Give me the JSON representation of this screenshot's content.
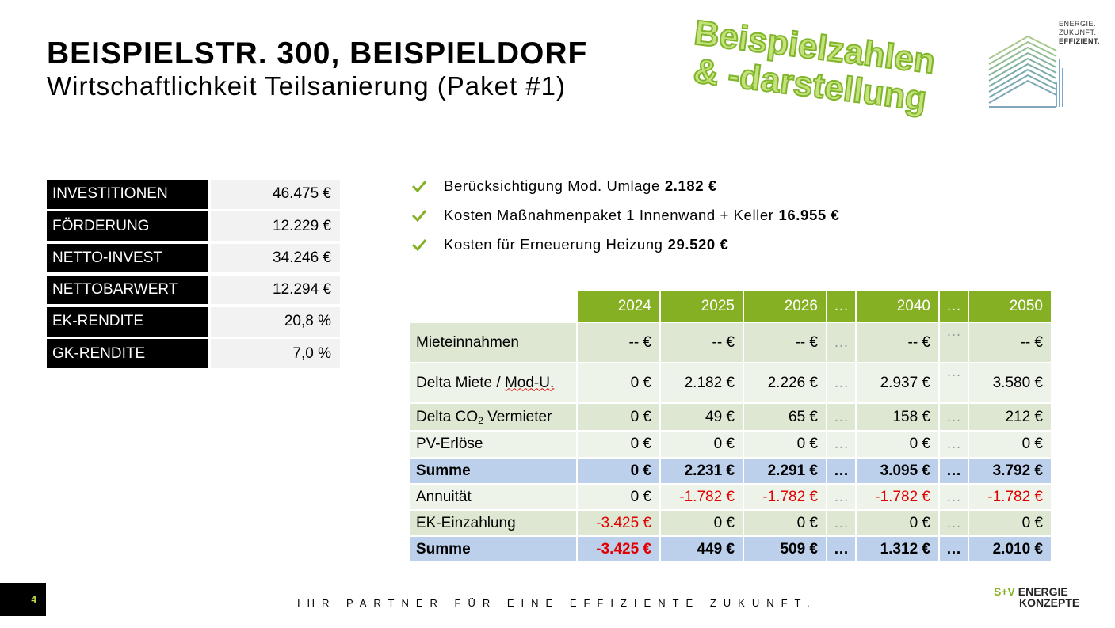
{
  "header": {
    "title": "BEISPIELSTR. 300, BEISPIELDORF",
    "subtitle": "Wirtschaftlichkeit Teilsanierung (Paket #1)",
    "watermark_line1": "Beispielzahlen",
    "watermark_line2": "& -darstellung"
  },
  "logo": {
    "line1": "ENERGIE.",
    "line2": "ZUKUNFT.",
    "line3": "EFFIZIENT.",
    "icon": "building-logo-icon"
  },
  "kpis": [
    {
      "label": "INVESTITIONEN",
      "value": "46.475 €"
    },
    {
      "label": "FÖRDERUNG",
      "value": "12.229 €"
    },
    {
      "label": "NETTO-INVEST",
      "value": "34.246 €"
    },
    {
      "label": "NETTOBARWERT",
      "value": "12.294 €"
    },
    {
      "label": "EK-RENDITE",
      "value": "20,8 %"
    },
    {
      "label": "GK-RENDITE",
      "value": "7,0 %"
    }
  ],
  "bullets": [
    {
      "text": "Berücksichtigung Mod. Umlage",
      "value": "2.182 €"
    },
    {
      "text": "Kosten Maßnahmenpaket 1 Innenwand + Keller",
      "value": "16.955 €"
    },
    {
      "text": "Kosten für Erneuerung Heizung",
      "value": "29.520 €"
    }
  ],
  "table": {
    "columns": [
      "2024",
      "2025",
      "2026",
      "…",
      "2040",
      "…",
      "2050"
    ],
    "rows": [
      {
        "label": "Mieteinnahmen",
        "cells": [
          "-- €",
          "-- €",
          "-- €",
          "…",
          "-- €",
          "…",
          "-- €"
        ]
      },
      {
        "label_a": "Delta Miete / ",
        "label_b": "Mod-U.",
        "cells": [
          "0 €",
          "2.182 €",
          "2.226 €",
          "…",
          "2.937 €",
          "…",
          "3.580 €"
        ]
      },
      {
        "label_a": "Delta CO",
        "label_sub": "2",
        "label_b": " Vermieter",
        "cells": [
          "0 €",
          "49 €",
          "65 €",
          "…",
          "158 €",
          "…",
          "212 €"
        ]
      },
      {
        "label": "PV-Erlöse",
        "cells": [
          "0 €",
          "0 €",
          "0 €",
          "…",
          "0 €",
          "…",
          "0 €"
        ]
      },
      {
        "label": "Summe",
        "cells": [
          "0 €",
          "2.231 €",
          "2.291 €",
          "…",
          "3.095 €",
          "…",
          "3.792 €"
        ]
      },
      {
        "label": "Annuität",
        "cells": [
          "0 €",
          "-1.782 €",
          "-1.782 €",
          "…",
          "-1.782 €",
          "…",
          "-1.782 €"
        ]
      },
      {
        "label": "EK-Einzahlung",
        "cells": [
          "-3.425 €",
          "0 €",
          "0 €",
          "…",
          "0 €",
          "…",
          "0 €"
        ]
      },
      {
        "label": "Summe",
        "cells": [
          "-3.425 €",
          "449 €",
          "509 €",
          "…",
          "1.312 €",
          "…",
          "2.010 €"
        ]
      }
    ]
  },
  "footer": {
    "page_number": "4",
    "tagline": "IHR PARTNER FÜR EINE EFFIZIENTE ZUKUNFT.",
    "brand_sv": "S+V",
    "brand_line1": "ENERGIE",
    "brand_line2": "KONZEPTE"
  },
  "colors": {
    "accent_green": "#86b024",
    "sum_blue": "#bdd0eb",
    "negative_red": "#e00000"
  }
}
